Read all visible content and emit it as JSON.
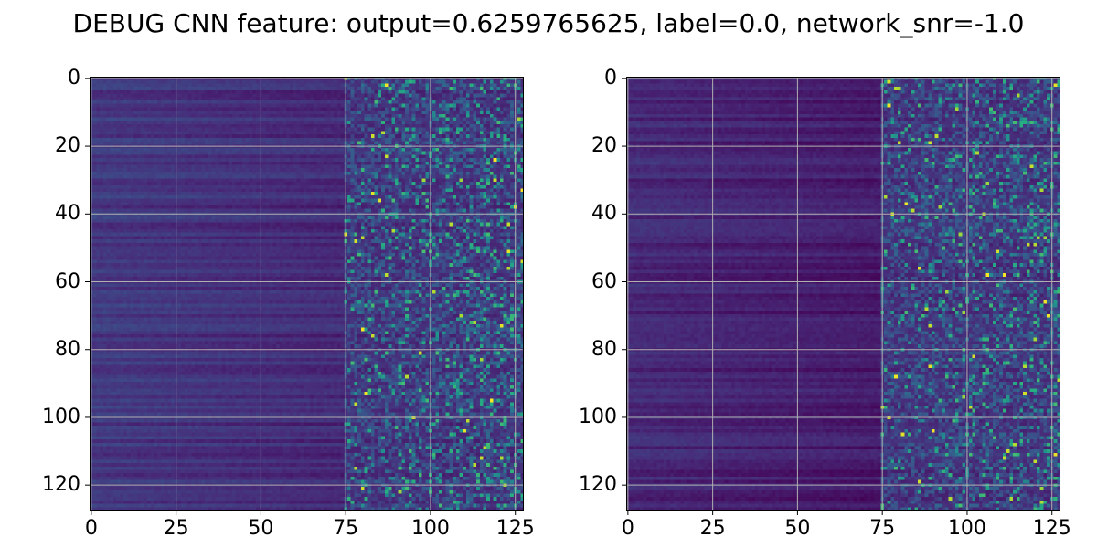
{
  "title": "DEBUG CNN feature: output=0.6259765625, label=0.0, network_snr=-1.0",
  "chart_data": [
    {
      "type": "heatmap",
      "colormap": "viridis",
      "grid": true,
      "rows": 128,
      "cols": 128,
      "xlim": [
        0,
        127
      ],
      "ylim": [
        127,
        0
      ],
      "xticks": [
        0,
        25,
        50,
        75,
        100,
        125
      ],
      "yticks": [
        0,
        20,
        40,
        60,
        80,
        100,
        120
      ],
      "xtick_labels": [
        "0",
        "25",
        "50",
        "75",
        "100",
        "125"
      ],
      "ytick_labels": [
        "0",
        "20",
        "40",
        "60",
        "80",
        "100",
        "120"
      ],
      "pattern": "low values (dark) for columns 0-75, mid values columns 75-100, high noisy values columns 100-127"
    },
    {
      "type": "heatmap",
      "colormap": "viridis",
      "grid": true,
      "rows": 128,
      "cols": 128,
      "xlim": [
        0,
        127
      ],
      "ylim": [
        127,
        0
      ],
      "xticks": [
        0,
        25,
        50,
        75,
        100,
        125
      ],
      "yticks": [
        0,
        20,
        40,
        60,
        80,
        100,
        120
      ],
      "xtick_labels": [
        "0",
        "25",
        "50",
        "75",
        "100",
        "125"
      ],
      "ytick_labels": [
        "0",
        "20",
        "40",
        "60",
        "80",
        "100",
        "120"
      ],
      "pattern": "low values (dark) for columns 0-75, mid-high noisy values for columns 75-127"
    }
  ]
}
